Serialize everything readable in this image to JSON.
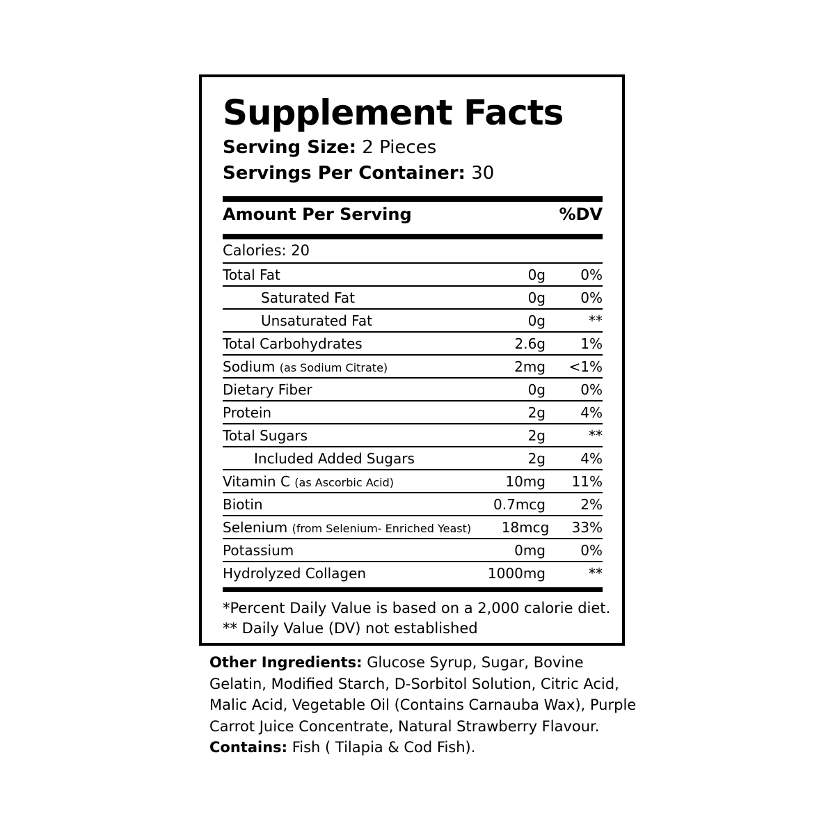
{
  "title": "Supplement Facts",
  "serving_size": {
    "label": "Serving Size:",
    "value": "2 Pieces"
  },
  "servings_per_container": {
    "label": "Servings Per Container:",
    "value": "30"
  },
  "header": {
    "amount": "Amount Per Serving",
    "dv": "%DV"
  },
  "calories": "Calories: 20",
  "rows": [
    {
      "name": "Total Fat",
      "note": "",
      "amount": "0g",
      "dv": "0%"
    },
    {
      "name": "Saturated Fat",
      "note": "",
      "amount": "0g",
      "dv": "0%"
    },
    {
      "name": "Unsaturated Fat",
      "note": "",
      "amount": "0g",
      "dv": "**"
    },
    {
      "name": "Total Carbohydrates",
      "note": "",
      "amount": "2.6g",
      "dv": "1%"
    },
    {
      "name": "Sodium",
      "note": "(as Sodium Citrate)",
      "amount": "2mg",
      "dv": "<1%"
    },
    {
      "name": "Dietary Fiber",
      "note": "",
      "amount": "0g",
      "dv": "0%"
    },
    {
      "name": "Protein",
      "note": "",
      "amount": "2g",
      "dv": "4%"
    },
    {
      "name": "Total Sugars",
      "note": "",
      "amount": "2g",
      "dv": "**"
    },
    {
      "name": "Included Added Sugars",
      "note": "",
      "amount": "2g",
      "dv": "4%"
    },
    {
      "name": "Vitamin C",
      "note": "(as Ascorbic Acid)",
      "amount": "10mg",
      "dv": "11%"
    },
    {
      "name": "Biotin",
      "note": "",
      "amount": "0.7mcg",
      "dv": "2%"
    },
    {
      "name": "Selenium",
      "note": "(from Selenium- Enriched Yeast)",
      "amount": "18mcg",
      "dv": "33%"
    },
    {
      "name": "Potassium",
      "note": "",
      "amount": "0mg",
      "dv": "0%"
    },
    {
      "name": "Hydrolyzed Collagen",
      "note": "",
      "amount": "1000mg",
      "dv": "**"
    }
  ],
  "footnotes": [
    "*Percent Daily Value is based on a 2,000 calorie diet.",
    "** Daily Value (DV) not established"
  ],
  "other_ingredients": {
    "label": "Other Ingredients:",
    "text": "Glucose Syrup, Sugar, Bovine Gelatin, Modified Starch, D-Sorbitol Solution, Citric Acid, Malic Acid,  Vegetable Oil (Contains Carnauba Wax), Purple Carrot Juice Concentrate, Natural Strawberry Flavour."
  },
  "contains": {
    "label": "Contains:",
    "text": "Fish ( Tilapia & Cod Fish)."
  }
}
